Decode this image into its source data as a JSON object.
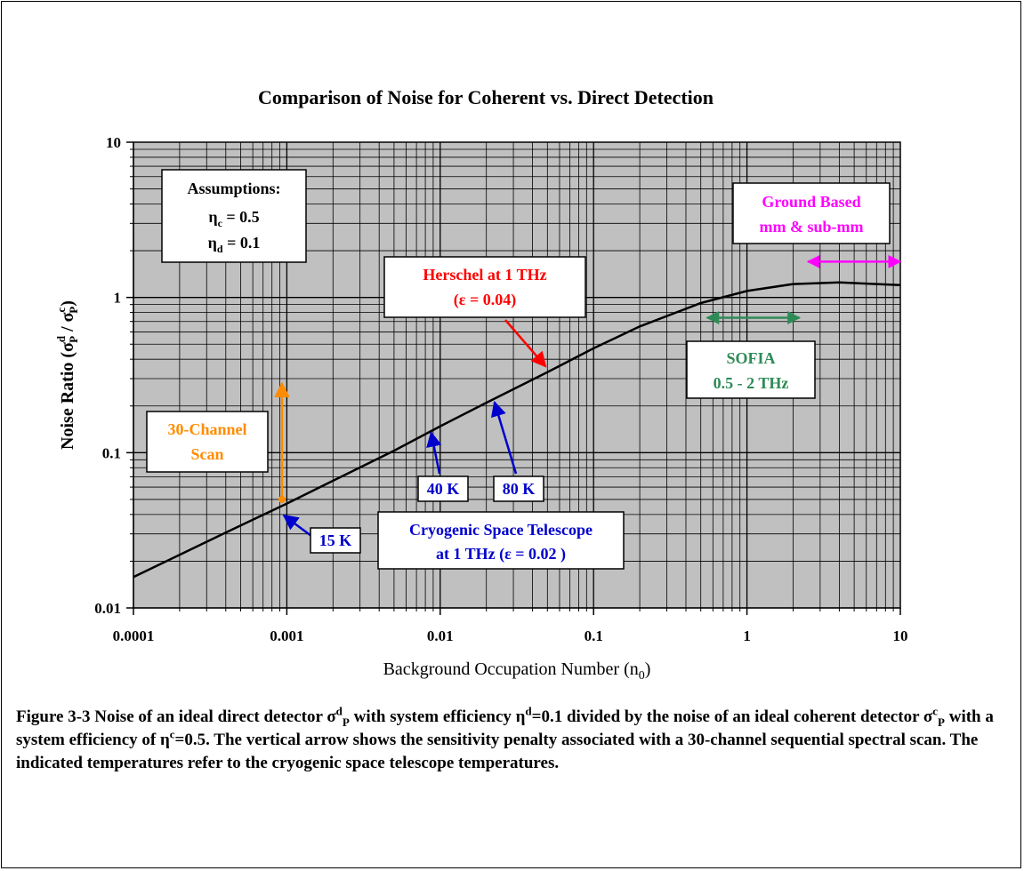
{
  "chart_data": {
    "type": "line",
    "title": "Comparison of Noise for Coherent vs. Direct Detection",
    "x_scale": "log",
    "y_scale": "log",
    "xlim": [
      0.0001,
      10
    ],
    "ylim": [
      0.01,
      10
    ],
    "grid": true,
    "x_ticks": [
      "0.0001",
      "0.001",
      "0.01",
      "0.1",
      "1",
      "10"
    ],
    "y_ticks": [
      "0.01",
      "0.1",
      "1",
      "10"
    ],
    "xlabel": {
      "main": "Background Occupation Number (n",
      "sub": "0",
      "end": ")"
    },
    "ylabel": {
      "main": "Noise Ratio (σ",
      "sup1": "d",
      "sub1": "P",
      "mid": " / σ",
      "sup2": "c",
      "sub2": "P",
      "end": ")"
    },
    "series": [
      {
        "color": "#000000",
        "x": [
          0.0001,
          0.0002,
          0.0005,
          0.001,
          0.002,
          0.005,
          0.01,
          0.02,
          0.05,
          0.1,
          0.2,
          0.5,
          1,
          2,
          4,
          7,
          10
        ],
        "y": [
          0.0158,
          0.022,
          0.034,
          0.047,
          0.066,
          0.103,
          0.148,
          0.21,
          0.33,
          0.47,
          0.65,
          0.92,
          1.1,
          1.22,
          1.25,
          1.22,
          1.2
        ]
      }
    ],
    "annotations": {
      "assumptions": {
        "title": "Assumptions:",
        "line1": "η",
        "line1_sub": "c",
        "line1_val": " = 0.5",
        "line2": "η",
        "line2_sub": "d",
        "line2_val": " = 0.1"
      },
      "ground_based": {
        "line1": "Ground Based",
        "line2": "mm & sub-mm",
        "color": "#ff00ff",
        "range": [
          2.5,
          10
        ]
      },
      "herschel": {
        "line1": "Herschel at 1 THz",
        "line2": "(ε = 0.04)",
        "color": "#ff0000",
        "point": [
          0.05,
          0.35
        ]
      },
      "sofia": {
        "line1": "SOFIA",
        "line2": "0.5 - 2 THz",
        "color": "#2e8b57",
        "range": [
          0.55,
          2.2
        ]
      },
      "channel_scan": {
        "line1": "30-Channel",
        "line2": "Scan",
        "color": "#ff8c00",
        "x": 0.00093,
        "from": 0.05,
        "to": 0.28
      },
      "cryogenic": {
        "line1": "Cryogenic Space Telescope",
        "line2": "at 1 THz (ε = 0.02 )",
        "color": "#0000cc"
      },
      "temps": [
        {
          "label": "15 K",
          "x": 0.00093,
          "y": 0.041
        },
        {
          "label": "40 K",
          "x": 0.0085,
          "y": 0.14
        },
        {
          "label": "80 K",
          "x": 0.022,
          "y": 0.22
        }
      ]
    }
  },
  "caption": {
    "p1": "Figure 3-3 Noise of an ideal direct detector σ",
    "s1_sup": "d",
    "s1_sub": "P",
    "p2": " with system efficiency η",
    "s2_sup": "d",
    "p3": "=0.1 divided by the noise of an ideal coherent detector σ",
    "s3_sup": "c",
    "s3_sub": "P",
    "p4": " with a system efficiency of η",
    "s4_sup": "c",
    "p5": "=0.5.  The vertical arrow shows the sensitivity penalty associated with a 30-channel sequential spectral scan.  The indicated temperatures refer to the cryogenic space telescope temperatures."
  }
}
